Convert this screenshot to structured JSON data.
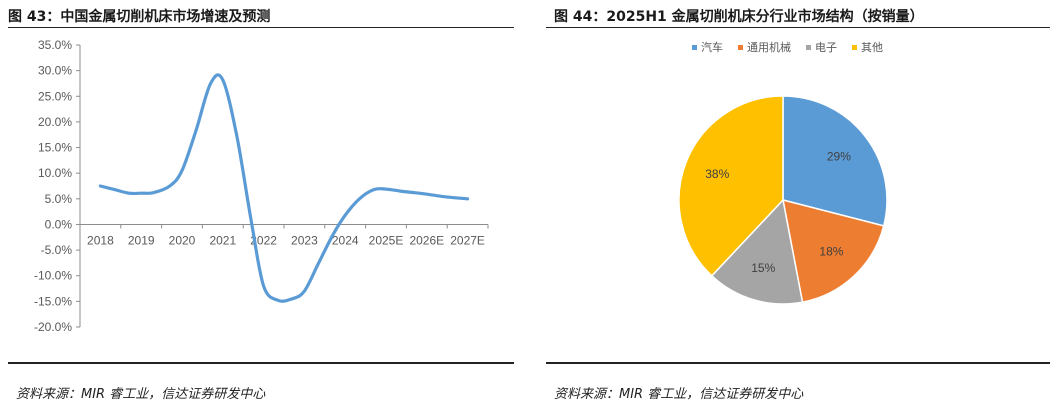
{
  "left": {
    "title": "图 43：中国金属切削机床市场增速及预测",
    "source": "资料来源：MIR 睿工业，信达证券研发中心"
  },
  "right": {
    "title": "图 44：2025H1 金属切削机床分行业市场结构（按销量）",
    "source": "资料来源：MIR 睿工业，信达证券研发中心"
  },
  "colors": {
    "line": "#5b9bd5",
    "axis": "#8c8c8c",
    "tick_text": "#595959"
  },
  "chart_data": [
    {
      "type": "line",
      "smooth": true,
      "title": "",
      "xlabel": "",
      "ylabel": "",
      "categories": [
        "2018",
        "2019",
        "2020",
        "2021",
        "2022",
        "2023",
        "2024",
        "2025E",
        "2026E",
        "2027E"
      ],
      "x": [
        0,
        0.35,
        0.7,
        1,
        1.3,
        1.7,
        2,
        2.35,
        2.7,
        3,
        3.35,
        3.7,
        4,
        4.35,
        4.7,
        5,
        5.35,
        5.7,
        6,
        6.35,
        6.7,
        7,
        7.35,
        7.7,
        8,
        8.35,
        8.7,
        9
      ],
      "values": [
        7.5,
        6.8,
        6.1,
        6.1,
        6.2,
        7.5,
        10.5,
        18.5,
        27.5,
        28.2,
        17.0,
        0.5,
        -12.0,
        -14.8,
        -14.5,
        -13.0,
        -7.5,
        -2.0,
        1.8,
        5.0,
        6.8,
        6.9,
        6.5,
        6.2,
        5.9,
        5.5,
        5.2,
        5.0
      ],
      "ylim": [
        -20,
        35
      ],
      "yticks": [
        "35.0%",
        "30.0%",
        "25.0%",
        "20.0%",
        "15.0%",
        "10.0%",
        "5.0%",
        "0.0%",
        "-5.0%",
        "-10.0%",
        "-15.0%",
        "-20.0%"
      ],
      "ytick_values": [
        35,
        30,
        25,
        20,
        15,
        10,
        5,
        0,
        -5,
        -10,
        -15,
        -20
      ],
      "grid": false,
      "legend": "none"
    },
    {
      "type": "pie",
      "title": "",
      "labels": [
        "汽车",
        "通用机械",
        "电子",
        "其他"
      ],
      "values": [
        29,
        18,
        15,
        38
      ],
      "value_labels": [
        "29%",
        "18%",
        "15%",
        "38%"
      ],
      "colors": [
        "#5b9bd5",
        "#ed7d31",
        "#a5a5a5",
        "#ffc000"
      ],
      "start_angle_deg": 0,
      "direction": "clockwise",
      "legend": "top"
    }
  ]
}
